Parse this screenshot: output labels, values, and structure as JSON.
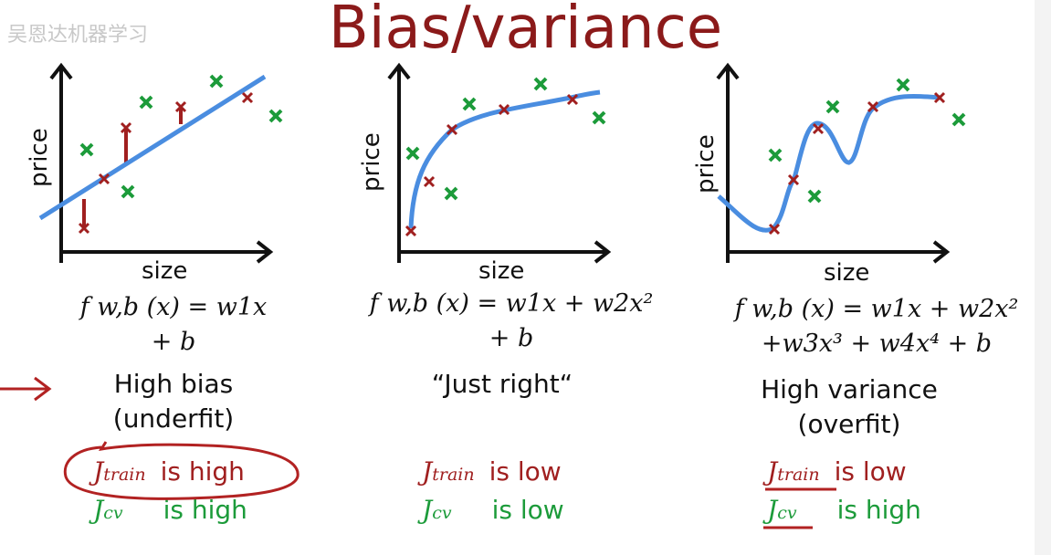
{
  "title": "Bias/variance",
  "watermark": "吴恩达机器学习",
  "colors": {
    "title": "#8b1a1a",
    "train": "#a01f1f",
    "cv": "#1c9b3a",
    "curve": "#4a8de0"
  },
  "panels": [
    {
      "xlabel": "size",
      "ylabel": "price",
      "formula_line1": "f w,b (x) = w1x",
      "formula_line2": "+ b",
      "verdict_line1": "High bias",
      "verdict_line2": "(underfit)",
      "j_train_symbol": "J",
      "j_train_sub": "train",
      "j_train_status": "is high",
      "j_cv_symbol": "J",
      "j_cv_sub": "cv",
      "j_cv_status": "is high"
    },
    {
      "xlabel": "size",
      "ylabel": "price",
      "formula_line1": "f w,b (x) = w1x + w2x²",
      "formula_line2": "+ b",
      "verdict_line1": "“Just right“",
      "verdict_line2": "",
      "j_train_symbol": "J",
      "j_train_sub": "train",
      "j_train_status": "is low",
      "j_cv_symbol": "J",
      "j_cv_sub": "cv",
      "j_cv_status": "is low"
    },
    {
      "xlabel": "size",
      "ylabel": "price",
      "formula_line1": "f w,b (x) = w1x + w2x²",
      "formula_line2": "+w3x³ + w4x⁴ + b",
      "verdict_line1": "High variance",
      "verdict_line2": "(overfit)",
      "j_train_symbol": "J",
      "j_train_sub": "train",
      "j_train_status": "is low",
      "j_cv_symbol": "J",
      "j_cv_sub": "cv",
      "j_cv_status": "is high"
    }
  ]
}
